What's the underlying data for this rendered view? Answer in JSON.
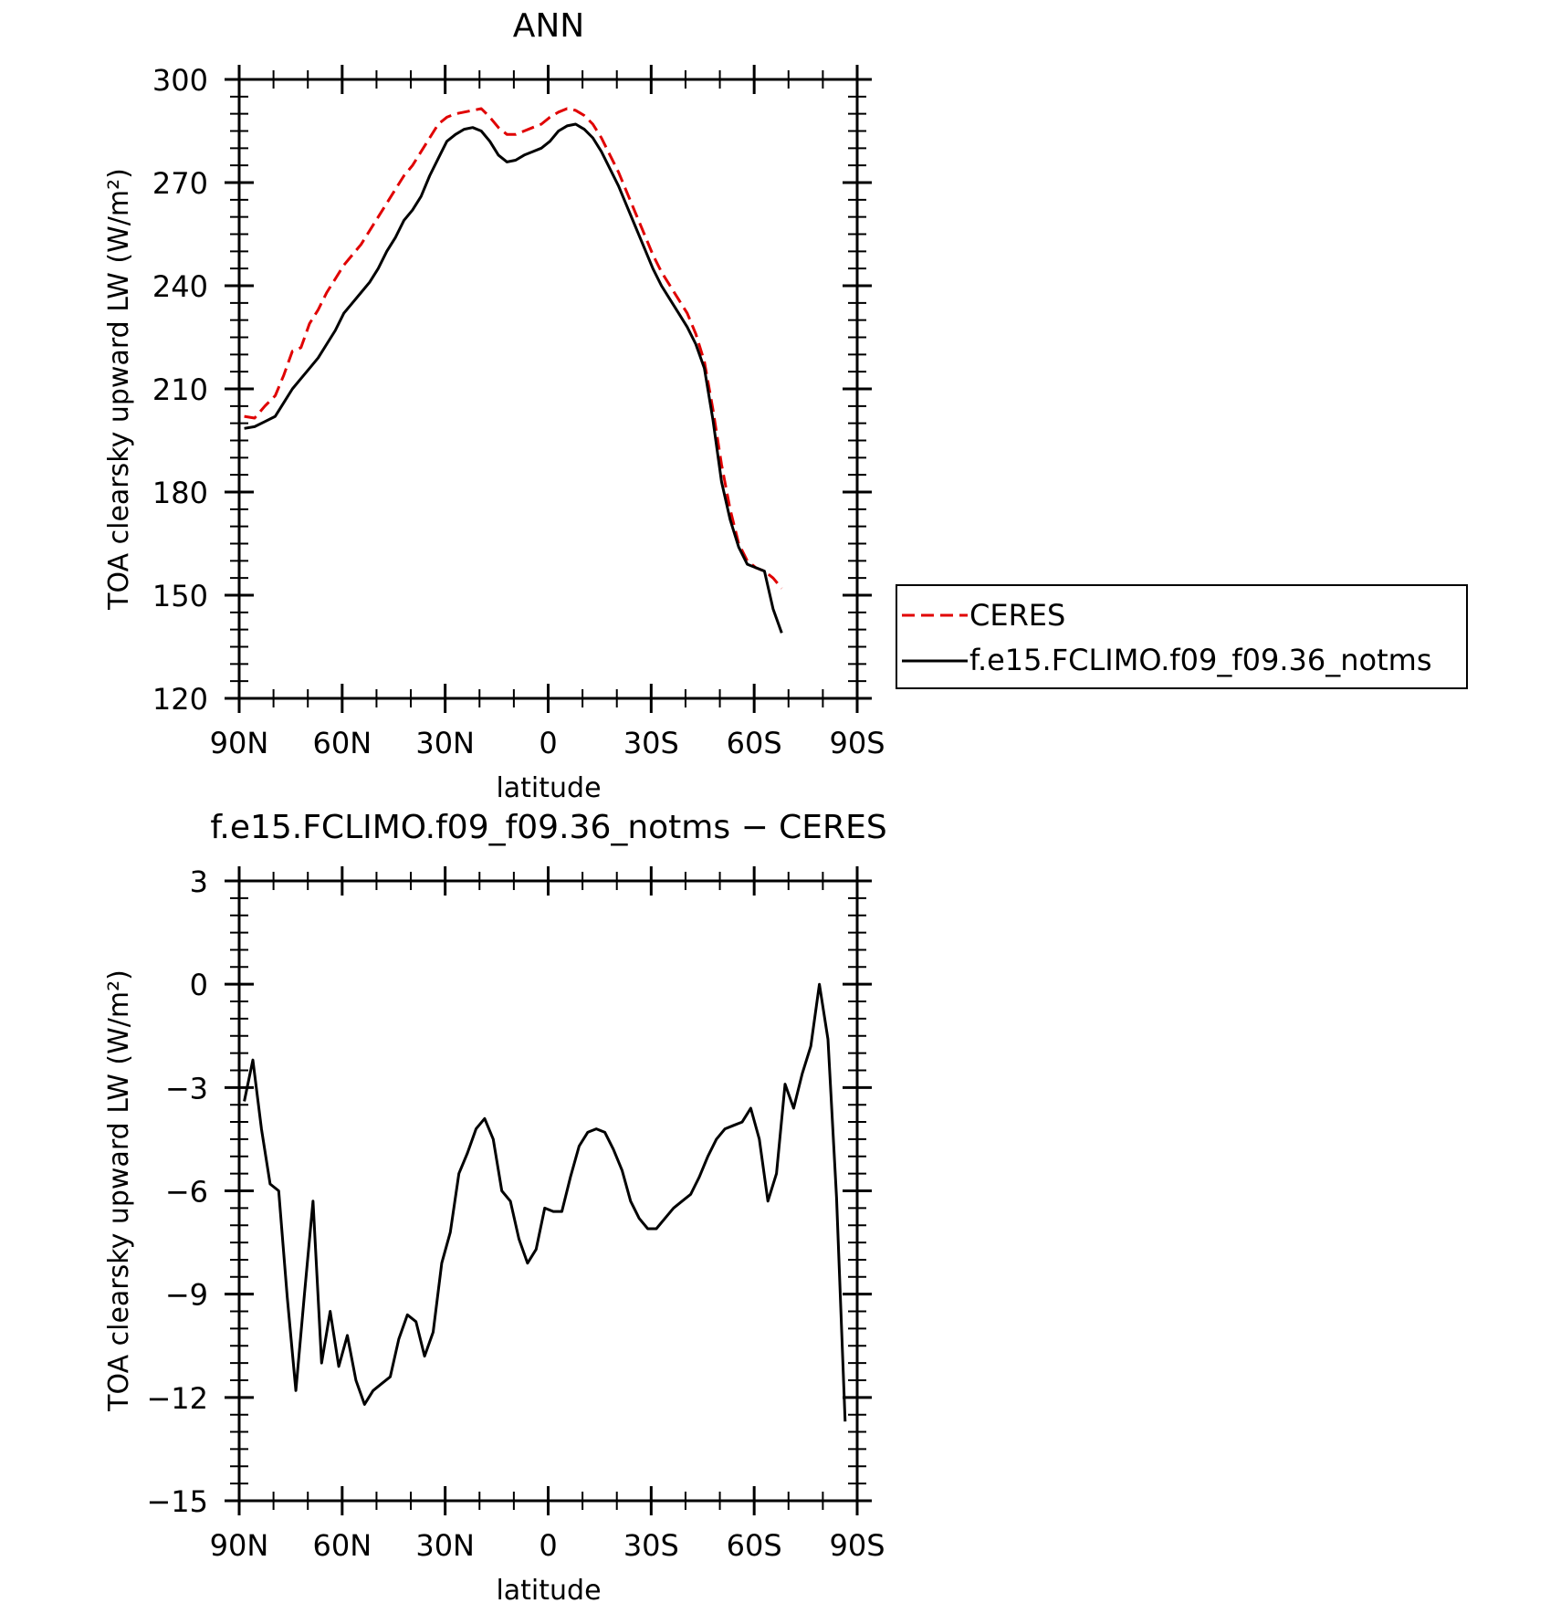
{
  "chart_data": [
    {
      "type": "line",
      "title": "ANN",
      "xlabel": "latitude",
      "ylabel": "TOA clearsky upward LW (W/m²)",
      "xlim": [
        90,
        -90
      ],
      "ylim": [
        120,
        300
      ],
      "x_ticks": [
        90,
        60,
        30,
        0,
        -30,
        -60,
        -90
      ],
      "x_tick_labels": [
        "90N",
        "60N",
        "30N",
        "0",
        "30S",
        "60S",
        "90S"
      ],
      "y_ticks": [
        120,
        150,
        180,
        210,
        240,
        270,
        300
      ],
      "y_tick_labels": [
        "120",
        "150",
        "180",
        "210",
        "240",
        "270",
        "300"
      ],
      "legend": {
        "placement": "right",
        "entries": [
          "CERES",
          "f.e15.FCLIMO.f09_f09.36_notms"
        ]
      },
      "series": [
        {
          "name": "CERES",
          "color": "#e00000",
          "dash": "dashed",
          "points": [
            [
              88.5,
              202
            ],
            [
              85.5,
              201.5
            ],
            [
              82.5,
              205
            ],
            [
              79.5,
              208
            ],
            [
              77,
              214
            ],
            [
              74.5,
              221
            ],
            [
              72,
              222
            ],
            [
              69.5,
              229
            ],
            [
              67,
              233
            ],
            [
              64.5,
              238
            ],
            [
              62,
              242
            ],
            [
              59.5,
              246
            ],
            [
              57,
              249
            ],
            [
              54.5,
              252
            ],
            [
              52,
              256
            ],
            [
              49.5,
              260
            ],
            [
              47,
              264
            ],
            [
              44.5,
              268
            ],
            [
              42,
              272
            ],
            [
              39.5,
              275
            ],
            [
              37,
              279
            ],
            [
              34.5,
              283
            ],
            [
              32,
              287
            ],
            [
              29.5,
              289
            ],
            [
              27,
              290
            ],
            [
              24.5,
              290.5
            ],
            [
              22,
              291
            ],
            [
              19.5,
              291.5
            ],
            [
              17,
              289
            ],
            [
              14.5,
              286
            ],
            [
              12,
              284
            ],
            [
              9.5,
              284
            ],
            [
              7,
              285
            ],
            [
              4.5,
              286
            ],
            [
              2,
              287
            ],
            [
              -0.5,
              289
            ],
            [
              -3,
              290.5
            ],
            [
              -5.5,
              291.5
            ],
            [
              -8,
              291
            ],
            [
              -10.5,
              289.5
            ],
            [
              -13,
              287
            ],
            [
              -15.5,
              283
            ],
            [
              -18,
              278
            ],
            [
              -20.5,
              273
            ],
            [
              -23,
              267
            ],
            [
              -25.5,
              261
            ],
            [
              -28,
              255
            ],
            [
              -30.5,
              249
            ],
            [
              -33,
              244
            ],
            [
              -35.5,
              240
            ],
            [
              -38,
              236
            ],
            [
              -40.5,
              232
            ],
            [
              -43,
              226
            ],
            [
              -45.5,
              218
            ],
            [
              -48,
              204
            ],
            [
              -50.5,
              188
            ],
            [
              -53,
              175
            ],
            [
              -55.5,
              165
            ],
            [
              -58,
              160
            ],
            [
              -60.5,
              158
            ],
            [
              -63,
              157
            ],
            [
              -65.5,
              155
            ],
            [
              -68,
              152
            ]
          ]
        },
        {
          "name": "f.e15.FCLIMO.f09_f09.36_notms",
          "color": "#000000",
          "dash": "solid",
          "points": [
            [
              88.5,
              198.5
            ],
            [
              85.5,
              199
            ],
            [
              82.5,
              200.5
            ],
            [
              79.5,
              202
            ],
            [
              77,
              206
            ],
            [
              74.5,
              210
            ],
            [
              72,
              213
            ],
            [
              69.5,
              216
            ],
            [
              67,
              219
            ],
            [
              64.5,
              223
            ],
            [
              62,
              227
            ],
            [
              59.5,
              232
            ],
            [
              57,
              235
            ],
            [
              54.5,
              238
            ],
            [
              52,
              241
            ],
            [
              49.5,
              245
            ],
            [
              47,
              250
            ],
            [
              44.5,
              254
            ],
            [
              42,
              259
            ],
            [
              39.5,
              262
            ],
            [
              37,
              266
            ],
            [
              34.5,
              272
            ],
            [
              32,
              277
            ],
            [
              29.5,
              282
            ],
            [
              27,
              284
            ],
            [
              24.5,
              285.5
            ],
            [
              22,
              286
            ],
            [
              19.5,
              285
            ],
            [
              17,
              282
            ],
            [
              14.5,
              278
            ],
            [
              12,
              276
            ],
            [
              9.5,
              276.5
            ],
            [
              7,
              278
            ],
            [
              4.5,
              279
            ],
            [
              2,
              280
            ],
            [
              -0.5,
              282
            ],
            [
              -3,
              285
            ],
            [
              -5.5,
              286.5
            ],
            [
              -8,
              287
            ],
            [
              -10.5,
              285.5
            ],
            [
              -13,
              283
            ],
            [
              -15.5,
              279
            ],
            [
              -18,
              274
            ],
            [
              -20.5,
              269
            ],
            [
              -23,
              263
            ],
            [
              -25.5,
              257
            ],
            [
              -28,
              251
            ],
            [
              -30.5,
              245
            ],
            [
              -33,
              240
            ],
            [
              -35.5,
              236
            ],
            [
              -38,
              232
            ],
            [
              -40.5,
              228
            ],
            [
              -43,
              223
            ],
            [
              -45.5,
              216
            ],
            [
              -48,
              201
            ],
            [
              -50.5,
              183
            ],
            [
              -53,
              172
            ],
            [
              -55.5,
              164
            ],
            [
              -58,
              159
            ],
            [
              -60.5,
              158
            ],
            [
              -63,
              157
            ],
            [
              -65.5,
              146
            ],
            [
              -68,
              139
            ]
          ]
        }
      ]
    },
    {
      "type": "line",
      "title": "f.e15.FCLIMO.f09_f09.36_notms − CERES",
      "xlabel": "latitude",
      "ylabel": "TOA clearsky upward LW (W/m²)",
      "xlim": [
        90,
        -90
      ],
      "ylim": [
        -15,
        3
      ],
      "x_ticks": [
        90,
        60,
        30,
        0,
        -30,
        -60,
        -90
      ],
      "x_tick_labels": [
        "90N",
        "60N",
        "30N",
        "0",
        "30S",
        "60S",
        "90S"
      ],
      "y_ticks": [
        -15,
        -12,
        -9,
        -6,
        -3,
        0,
        3
      ],
      "y_tick_labels": [
        "−15",
        "−12",
        "−9",
        "−6",
        "−3",
        "0",
        "3"
      ],
      "series": [
        {
          "color": "#000000",
          "dash": "solid",
          "points": [
            [
              88.5,
              -3.4
            ],
            [
              86,
              -2.2
            ],
            [
              83.5,
              -4.2
            ],
            [
              81,
              -5.8
            ],
            [
              78.5,
              -6.0
            ],
            [
              76,
              -9.1
            ],
            [
              73.5,
              -11.8
            ],
            [
              71,
              -9.0
            ],
            [
              68.5,
              -6.3
            ],
            [
              66,
              -11.0
            ],
            [
              63.5,
              -9.5
            ],
            [
              61,
              -11.1
            ],
            [
              58.5,
              -10.2
            ],
            [
              56,
              -11.5
            ],
            [
              53.5,
              -12.2
            ],
            [
              51,
              -11.8
            ],
            [
              48.5,
              -11.6
            ],
            [
              46,
              -11.4
            ],
            [
              43.5,
              -10.3
            ],
            [
              41,
              -9.6
            ],
            [
              38.5,
              -9.8
            ],
            [
              36,
              -10.8
            ],
            [
              33.5,
              -10.1
            ],
            [
              31,
              -8.1
            ],
            [
              28.5,
              -7.2
            ],
            [
              26,
              -5.5
            ],
            [
              23.5,
              -4.9
            ],
            [
              21,
              -4.2
            ],
            [
              18.5,
              -3.9
            ],
            [
              16,
              -4.5
            ],
            [
              13.5,
              -6.0
            ],
            [
              11,
              -6.3
            ],
            [
              8.5,
              -7.4
            ],
            [
              6,
              -8.1
            ],
            [
              3.5,
              -7.7
            ],
            [
              1,
              -6.5
            ],
            [
              -1.5,
              -6.6
            ],
            [
              -4,
              -6.6
            ],
            [
              -6.5,
              -5.6
            ],
            [
              -9,
              -4.7
            ],
            [
              -11.5,
              -4.3
            ],
            [
              -14,
              -4.2
            ],
            [
              -16.5,
              -4.3
            ],
            [
              -19,
              -4.8
            ],
            [
              -21.5,
              -5.4
            ],
            [
              -24,
              -6.3
            ],
            [
              -26.5,
              -6.8
            ],
            [
              -29,
              -7.1
            ],
            [
              -31.5,
              -7.1
            ],
            [
              -34,
              -6.8
            ],
            [
              -36.5,
              -6.5
            ],
            [
              -39,
              -6.3
            ],
            [
              -41.5,
              -6.1
            ],
            [
              -44,
              -5.6
            ],
            [
              -46.5,
              -5.0
            ],
            [
              -49,
              -4.5
            ],
            [
              -51.5,
              -4.2
            ],
            [
              -54,
              -4.1
            ],
            [
              -56.5,
              -4.0
            ],
            [
              -59,
              -3.6
            ],
            [
              -61.5,
              -4.5
            ],
            [
              -64,
              -6.3
            ],
            [
              -66.5,
              -5.5
            ],
            [
              -69,
              -2.9
            ],
            [
              -71.5,
              -3.6
            ],
            [
              -74,
              -2.6
            ],
            [
              -76.5,
              -1.8
            ],
            [
              -79,
              0.0
            ],
            [
              -81.5,
              -1.6
            ],
            [
              -84,
              -6.2
            ],
            [
              -86.5,
              -12.7
            ]
          ]
        }
      ]
    }
  ]
}
